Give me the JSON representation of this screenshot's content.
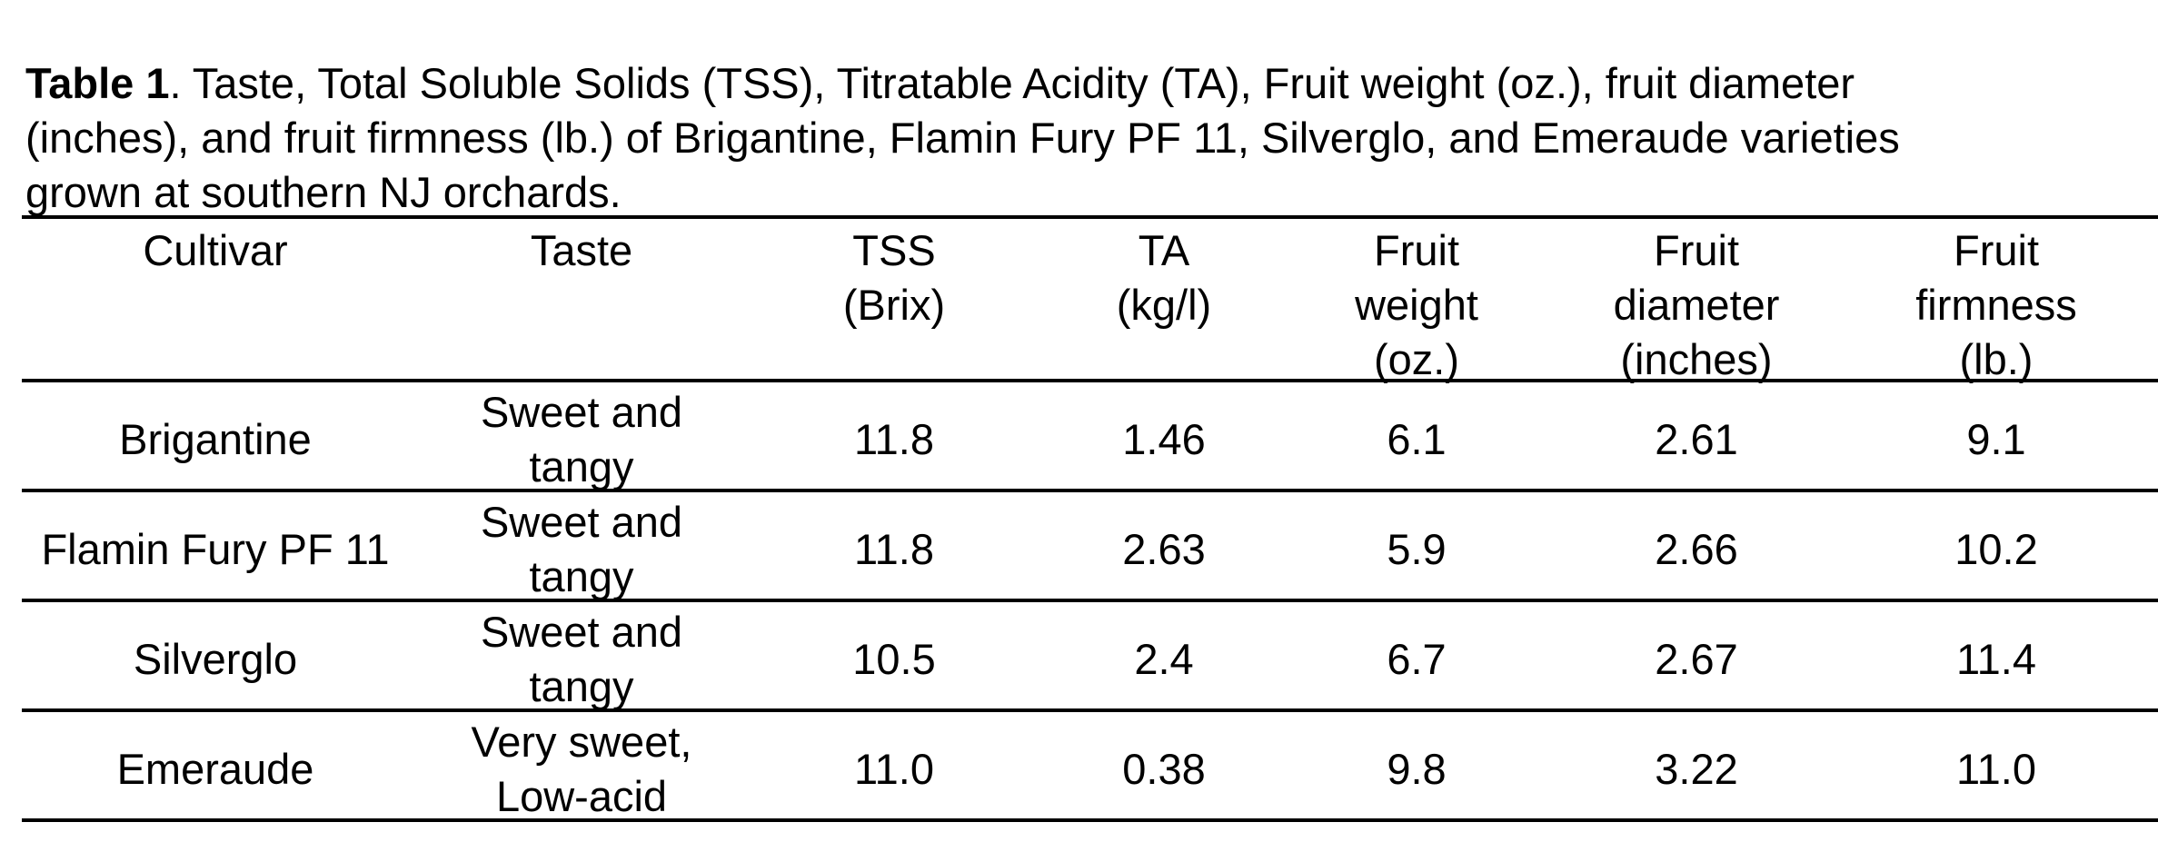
{
  "caption": {
    "label": "Table 1",
    "text": ". Taste, Total Soluble Solids (TSS), Titratable Acidity (TA), Fruit weight (oz.), fruit diameter\n(inches), and fruit firmness (lb.) of Brigantine, Flamin Fury PF 11, Silverglo, and Emeraude varieties\ngrown at southern NJ orchards."
  },
  "table": {
    "headers": [
      "Cultivar",
      "Taste",
      "TSS\n(Brix)",
      "TA\n(kg/l)",
      "Fruit\nweight\n(oz.)",
      "Fruit\ndiameter\n(inches)",
      "Fruit\nfirmness\n(lb.)"
    ],
    "rows": [
      [
        "Brigantine",
        "Sweet and\ntangy",
        "11.8",
        "1.46",
        "6.1",
        "2.61",
        "9.1"
      ],
      [
        "Flamin Fury PF 11",
        "Sweet and\ntangy",
        "11.8",
        "2.63",
        "5.9",
        "2.66",
        "10.2"
      ],
      [
        "Silverglo",
        "Sweet and\ntangy",
        "10.5",
        "2.4",
        "6.7",
        "2.67",
        "11.4"
      ],
      [
        "Emeraude",
        "Very sweet,\nLow-acid",
        "11.0",
        "0.38",
        "9.8",
        "3.22",
        "11.0"
      ]
    ]
  }
}
